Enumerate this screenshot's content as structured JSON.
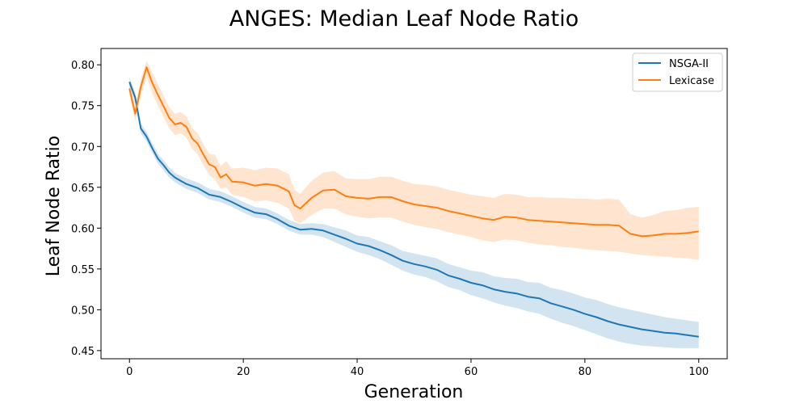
{
  "chart_data": {
    "type": "line",
    "title": "ANGES: Median Leaf Node Ratio",
    "xlabel": "Generation",
    "ylabel": "Leaf Node Ratio",
    "xlim": [
      -5,
      105
    ],
    "ylim": [
      0.44,
      0.82
    ],
    "xticks": [
      0,
      20,
      40,
      60,
      80,
      100
    ],
    "xtick_labels": [
      "0",
      "20",
      "40",
      "60",
      "80",
      "100"
    ],
    "yticks": [
      0.45,
      0.5,
      0.55,
      0.6,
      0.65,
      0.7,
      0.75,
      0.8
    ],
    "ytick_labels": [
      "0.45",
      "0.50",
      "0.55",
      "0.60",
      "0.65",
      "0.70",
      "0.75",
      "0.80"
    ],
    "grid": false,
    "legend_position": "top-right",
    "series": [
      {
        "name": "NSGA-II",
        "color": "#1f77b4",
        "x": [
          0,
          1,
          2,
          3,
          4,
          5,
          6,
          7,
          8,
          9,
          10,
          12,
          14,
          16,
          18,
          20,
          22,
          24,
          26,
          28,
          30,
          32,
          34,
          36,
          38,
          40,
          42,
          44,
          46,
          48,
          50,
          52,
          54,
          56,
          58,
          60,
          62,
          64,
          66,
          68,
          70,
          72,
          74,
          76,
          78,
          80,
          82,
          84,
          86,
          88,
          90,
          92,
          94,
          96,
          98,
          100
        ],
        "median": [
          0.779,
          0.76,
          0.722,
          0.712,
          0.698,
          0.685,
          0.677,
          0.668,
          0.662,
          0.658,
          0.654,
          0.649,
          0.641,
          0.638,
          0.632,
          0.625,
          0.619,
          0.617,
          0.611,
          0.603,
          0.598,
          0.599,
          0.597,
          0.592,
          0.587,
          0.581,
          0.578,
          0.573,
          0.567,
          0.56,
          0.556,
          0.553,
          0.549,
          0.542,
          0.538,
          0.533,
          0.53,
          0.525,
          0.522,
          0.52,
          0.516,
          0.514,
          0.508,
          0.504,
          0.5,
          0.495,
          0.491,
          0.486,
          0.482,
          0.479,
          0.476,
          0.474,
          0.472,
          0.471,
          0.469,
          0.467
        ],
        "lower": [
          0.773,
          0.754,
          0.716,
          0.706,
          0.692,
          0.679,
          0.671,
          0.662,
          0.656,
          0.652,
          0.648,
          0.643,
          0.635,
          0.632,
          0.626,
          0.619,
          0.613,
          0.611,
          0.605,
          0.597,
          0.592,
          0.592,
          0.589,
          0.583,
          0.577,
          0.571,
          0.567,
          0.562,
          0.555,
          0.548,
          0.543,
          0.54,
          0.535,
          0.528,
          0.524,
          0.518,
          0.514,
          0.509,
          0.505,
          0.502,
          0.498,
          0.495,
          0.489,
          0.484,
          0.48,
          0.475,
          0.47,
          0.465,
          0.461,
          0.458,
          0.456,
          0.455,
          0.454,
          0.453,
          0.453,
          0.453
        ],
        "upper": [
          0.785,
          0.766,
          0.728,
          0.718,
          0.704,
          0.691,
          0.683,
          0.674,
          0.668,
          0.664,
          0.661,
          0.656,
          0.648,
          0.645,
          0.639,
          0.632,
          0.626,
          0.624,
          0.618,
          0.61,
          0.605,
          0.606,
          0.605,
          0.601,
          0.597,
          0.591,
          0.589,
          0.584,
          0.579,
          0.572,
          0.569,
          0.566,
          0.563,
          0.556,
          0.552,
          0.548,
          0.546,
          0.541,
          0.539,
          0.538,
          0.534,
          0.533,
          0.527,
          0.524,
          0.52,
          0.515,
          0.512,
          0.507,
          0.503,
          0.5,
          0.497,
          0.494,
          0.491,
          0.489,
          0.487,
          0.485
        ]
      },
      {
        "name": "Lexicase",
        "color": "#ff7f0e",
        "x": [
          0,
          1,
          2,
          3,
          4,
          5,
          6,
          7,
          8,
          9,
          10,
          11,
          12,
          13,
          14,
          15,
          16,
          17,
          18,
          20,
          22,
          24,
          26,
          28,
          29,
          30,
          32,
          34,
          36,
          38,
          40,
          42,
          44,
          46,
          48,
          50,
          52,
          54,
          56,
          58,
          60,
          62,
          64,
          66,
          68,
          70,
          72,
          74,
          76,
          78,
          80,
          82,
          84,
          86,
          88,
          90,
          92,
          94,
          96,
          98,
          100
        ],
        "median": [
          0.771,
          0.74,
          0.773,
          0.797,
          0.778,
          0.763,
          0.749,
          0.735,
          0.727,
          0.729,
          0.724,
          0.71,
          0.703,
          0.69,
          0.678,
          0.675,
          0.662,
          0.666,
          0.657,
          0.656,
          0.652,
          0.654,
          0.652,
          0.645,
          0.628,
          0.624,
          0.637,
          0.646,
          0.647,
          0.639,
          0.637,
          0.636,
          0.638,
          0.638,
          0.633,
          0.629,
          0.627,
          0.625,
          0.621,
          0.618,
          0.615,
          0.612,
          0.61,
          0.614,
          0.613,
          0.61,
          0.609,
          0.608,
          0.607,
          0.606,
          0.605,
          0.604,
          0.604,
          0.603,
          0.593,
          0.59,
          0.591,
          0.593,
          0.593,
          0.594,
          0.596
        ],
        "lower": [
          0.763,
          0.731,
          0.763,
          0.785,
          0.765,
          0.75,
          0.736,
          0.722,
          0.714,
          0.716,
          0.711,
          0.697,
          0.69,
          0.677,
          0.665,
          0.66,
          0.648,
          0.65,
          0.641,
          0.638,
          0.633,
          0.634,
          0.631,
          0.624,
          0.609,
          0.606,
          0.616,
          0.624,
          0.624,
          0.617,
          0.614,
          0.612,
          0.613,
          0.613,
          0.608,
          0.604,
          0.601,
          0.599,
          0.595,
          0.592,
          0.589,
          0.585,
          0.583,
          0.586,
          0.585,
          0.582,
          0.58,
          0.579,
          0.577,
          0.576,
          0.574,
          0.573,
          0.572,
          0.571,
          0.569,
          0.567,
          0.566,
          0.565,
          0.564,
          0.563,
          0.561
        ],
        "upper": [
          0.779,
          0.749,
          0.783,
          0.805,
          0.791,
          0.776,
          0.762,
          0.748,
          0.74,
          0.742,
          0.737,
          0.723,
          0.716,
          0.703,
          0.691,
          0.69,
          0.676,
          0.682,
          0.673,
          0.674,
          0.671,
          0.674,
          0.673,
          0.666,
          0.647,
          0.642,
          0.658,
          0.668,
          0.67,
          0.661,
          0.66,
          0.66,
          0.663,
          0.663,
          0.658,
          0.654,
          0.653,
          0.651,
          0.647,
          0.644,
          0.641,
          0.639,
          0.637,
          0.642,
          0.641,
          0.638,
          0.638,
          0.637,
          0.637,
          0.636,
          0.636,
          0.635,
          0.636,
          0.635,
          0.617,
          0.613,
          0.616,
          0.621,
          0.622,
          0.625,
          0.626
        ]
      }
    ]
  }
}
